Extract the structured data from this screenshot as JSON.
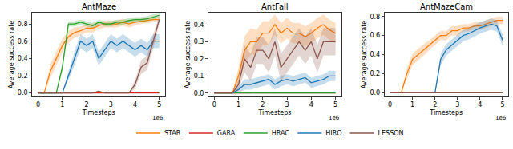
{
  "chart_data": [
    {
      "type": "line",
      "title": "AntMaze",
      "x_label": "Timesteps",
      "y_label": "Average success rate",
      "annotations": [
        "1e6"
      ],
      "legend": "bottom",
      "grid": false,
      "xlim": [
        -0.25,
        5.25
      ],
      "ylim": [
        -0.04,
        0.93
      ],
      "xticks": [
        0,
        1,
        2,
        3,
        4,
        5
      ],
      "yticks": [
        {
          "value": 0,
          "label": "0.0"
        },
        0.2,
        0.4,
        0.6,
        0.8
      ],
      "x": [
        0,
        0.25,
        0.5,
        0.75,
        1,
        1.25,
        1.5,
        1.75,
        2,
        2.25,
        2.5,
        2.75,
        3,
        3.25,
        3.5,
        3.75,
        4,
        4.25,
        4.5,
        4.75,
        5
      ],
      "series": [
        {
          "name": "STAR",
          "color": "#ff7f0e",
          "values": [
            0,
            0,
            0.25,
            0.4,
            0.55,
            0.65,
            0.7,
            0.72,
            0.75,
            0.75,
            0.78,
            0.8,
            0.8,
            0.8,
            0.82,
            0.8,
            0.82,
            0.83,
            0.84,
            0.85,
            0.85
          ],
          "error": [
            0,
            0,
            0.08,
            0.08,
            0.08,
            0.07,
            0.06,
            0.05,
            0.05,
            0.05,
            0.04,
            0.04,
            0.04,
            0.04,
            0.04,
            0.04,
            0.04,
            0.03,
            0.03,
            0.03,
            0.03
          ]
        },
        {
          "name": "GARA",
          "color": "#d62728",
          "values": [
            0,
            0,
            0,
            0,
            0,
            0,
            0,
            0,
            0,
            0,
            0,
            0,
            0,
            0,
            0,
            0,
            0,
            0,
            0,
            0,
            0
          ],
          "error": [
            0,
            0,
            0,
            0,
            0,
            0,
            0,
            0,
            0,
            0,
            0,
            0,
            0,
            0,
            0,
            0,
            0,
            0,
            0,
            0,
            0
          ]
        },
        {
          "name": "HRAC",
          "color": "#2ca02c",
          "values": [
            0,
            0,
            0,
            0,
            0.3,
            0.8,
            0.8,
            0.82,
            0.8,
            0.78,
            0.82,
            0.8,
            0.8,
            0.82,
            0.82,
            0.84,
            0.85,
            0.85,
            0.86,
            0.88,
            0.9
          ],
          "error": [
            0,
            0,
            0,
            0,
            0.05,
            0.03,
            0.03,
            0.03,
            0.03,
            0.03,
            0.03,
            0.03,
            0.03,
            0.03,
            0.03,
            0.03,
            0.03,
            0.03,
            0.03,
            0.03,
            0.03
          ]
        },
        {
          "name": "HIRO",
          "color": "#1f77b4",
          "values": [
            0,
            0,
            0,
            0,
            0,
            0.2,
            0.4,
            0.6,
            0.55,
            0.6,
            0.4,
            0.5,
            0.6,
            0.55,
            0.6,
            0.55,
            0.5,
            0.55,
            0.5,
            0.6,
            0.6
          ],
          "error": [
            0,
            0,
            0,
            0,
            0,
            0.05,
            0.08,
            0.08,
            0.08,
            0.08,
            0.08,
            0.08,
            0.08,
            0.08,
            0.08,
            0.08,
            0.08,
            0.08,
            0.08,
            0.08,
            0.08
          ]
        },
        {
          "name": "LESSON",
          "color": "#8c564b",
          "values": [
            0,
            0,
            0,
            0,
            0,
            0,
            0,
            0,
            0,
            0,
            0.02,
            0,
            0,
            0,
            0,
            0,
            0.1,
            0.3,
            0.35,
            0.6,
            0.85
          ],
          "error": [
            0,
            0,
            0,
            0,
            0,
            0,
            0,
            0,
            0,
            0,
            0.01,
            0,
            0,
            0,
            0,
            0,
            0.05,
            0.08,
            0.08,
            0.08,
            0.05
          ]
        }
      ]
    },
    {
      "type": "line",
      "title": "AntFall",
      "x_label": "Timesteps",
      "y_label": "Average success rate",
      "annotations": [
        "1e6"
      ],
      "grid": false,
      "xlim": [
        -0.25,
        5.25
      ],
      "ylim": [
        -0.02,
        0.47
      ],
      "xticks": [
        0,
        1,
        2,
        3,
        4,
        5
      ],
      "yticks": [
        {
          "value": 0,
          "label": "0.0"
        },
        0.1,
        0.2,
        0.3,
        0.4
      ],
      "x": [
        0,
        0.25,
        0.5,
        0.75,
        1,
        1.25,
        1.5,
        1.75,
        2,
        2.25,
        2.5,
        2.75,
        3,
        3.25,
        3.5,
        3.75,
        4,
        4.25,
        4.5,
        4.75,
        5
      ],
      "series": [
        {
          "name": "STAR",
          "color": "#ff7f0e",
          "values": [
            0,
            0,
            0,
            0,
            0.1,
            0.25,
            0.3,
            0.3,
            0.35,
            0.35,
            0.4,
            0.35,
            0.38,
            0.35,
            0.35,
            0.33,
            0.35,
            0.38,
            0.4,
            0.37,
            0.35
          ],
          "error": [
            0,
            0,
            0,
            0,
            0.05,
            0.08,
            0.08,
            0.07,
            0.07,
            0.07,
            0.06,
            0.06,
            0.06,
            0.06,
            0.06,
            0.06,
            0.06,
            0.06,
            0.06,
            0.06,
            0.06
          ]
        },
        {
          "name": "GARA",
          "color": "#d62728",
          "values": [
            0,
            0,
            0,
            0,
            0,
            0,
            0,
            0,
            0,
            0,
            0,
            0,
            0,
            0,
            0,
            0,
            0,
            0,
            0,
            0,
            0
          ],
          "error": [
            0,
            0,
            0,
            0,
            0,
            0,
            0,
            0,
            0,
            0,
            0,
            0,
            0,
            0,
            0,
            0,
            0,
            0,
            0,
            0,
            0
          ]
        },
        {
          "name": "HRAC",
          "color": "#2ca02c",
          "values": [
            0,
            0,
            0,
            0,
            0,
            0,
            0,
            0,
            0,
            0,
            0,
            0,
            0,
            0,
            0,
            0,
            0,
            0,
            0,
            0,
            0
          ],
          "error": [
            0,
            0,
            0,
            0,
            0,
            0,
            0,
            0,
            0,
            0,
            0,
            0,
            0,
            0,
            0,
            0,
            0,
            0,
            0,
            0,
            0
          ]
        },
        {
          "name": "HIRO",
          "color": "#1f77b4",
          "values": [
            0,
            0,
            0,
            0,
            0.02,
            0.05,
            0.05,
            0.06,
            0.07,
            0.08,
            0.05,
            0.07,
            0.08,
            0.07,
            0.08,
            0.09,
            0.06,
            0.07,
            0.08,
            0.1,
            0.1
          ],
          "error": [
            0,
            0,
            0,
            0,
            0.02,
            0.03,
            0.03,
            0.03,
            0.03,
            0.03,
            0.03,
            0.03,
            0.03,
            0.03,
            0.03,
            0.03,
            0.03,
            0.03,
            0.03,
            0.03,
            0.03
          ]
        },
        {
          "name": "LESSON",
          "color": "#8c564b",
          "values": [
            0,
            0,
            0,
            0,
            0.05,
            0.2,
            0.15,
            0.25,
            0.25,
            0.2,
            0.3,
            0.15,
            0.2,
            0.25,
            0.3,
            0.25,
            0.3,
            0.2,
            0.3,
            0.3,
            0.3
          ],
          "error": [
            0,
            0,
            0,
            0,
            0.03,
            0.08,
            0.08,
            0.08,
            0.08,
            0.08,
            0.08,
            0.08,
            0.08,
            0.08,
            0.08,
            0.08,
            0.08,
            0.08,
            0.08,
            0.08,
            0.08
          ]
        }
      ]
    },
    {
      "type": "line",
      "title": "AntMazeCam",
      "x_label": "Timesteps",
      "y_label": "Average success rate",
      "annotations": [
        "1e6"
      ],
      "grid": false,
      "xlim": [
        -0.25,
        5.25
      ],
      "ylim": [
        -0.04,
        0.84
      ],
      "xticks": [
        0,
        1,
        2,
        3,
        4,
        5
      ],
      "yticks": [
        {
          "value": 0,
          "label": "0.0"
        },
        0.2,
        0.4,
        0.6,
        0.8
      ],
      "x": [
        0,
        0.25,
        0.5,
        0.75,
        1,
        1.25,
        1.5,
        1.75,
        2,
        2.25,
        2.5,
        2.75,
        3,
        3.25,
        3.5,
        3.75,
        4,
        4.25,
        4.5,
        4.75,
        5
      ],
      "series": [
        {
          "name": "STAR",
          "color": "#ff7f0e",
          "values": [
            0,
            0,
            0,
            0.2,
            0.35,
            0.4,
            0.45,
            0.5,
            0.55,
            0.6,
            0.6,
            0.65,
            0.65,
            0.68,
            0.68,
            0.7,
            0.7,
            0.72,
            0.74,
            0.76,
            0.76
          ],
          "error": [
            0,
            0,
            0,
            0.06,
            0.06,
            0.06,
            0.06,
            0.05,
            0.05,
            0.05,
            0.05,
            0.05,
            0.05,
            0.04,
            0.04,
            0.04,
            0.04,
            0.04,
            0.04,
            0.04,
            0.04
          ]
        },
        {
          "name": "GARA",
          "color": "#d62728",
          "values": [
            0,
            0,
            0,
            0,
            0,
            0,
            0,
            0,
            0,
            0,
            0,
            0,
            0,
            0,
            0,
            0,
            0,
            0,
            0,
            0,
            0
          ],
          "error": [
            0,
            0,
            0,
            0,
            0,
            0,
            0,
            0,
            0,
            0,
            0,
            0,
            0,
            0,
            0,
            0,
            0,
            0,
            0,
            0,
            0
          ]
        },
        {
          "name": "HRAC",
          "color": "#2ca02c",
          "values": [
            0,
            0,
            0,
            0,
            0,
            0,
            0,
            0,
            0,
            0,
            0,
            0,
            0,
            0,
            0,
            0,
            0,
            0,
            0,
            0,
            0
          ],
          "error": [
            0,
            0,
            0,
            0,
            0,
            0,
            0,
            0,
            0,
            0,
            0,
            0,
            0,
            0,
            0,
            0,
            0,
            0,
            0,
            0,
            0
          ]
        },
        {
          "name": "HIRO",
          "color": "#1f77b4",
          "values": [
            0,
            0,
            0,
            0,
            0,
            0,
            0,
            0,
            0,
            0.35,
            0.45,
            0.5,
            0.55,
            0.6,
            0.62,
            0.65,
            0.68,
            0.7,
            0.72,
            0.7,
            0.55
          ],
          "error": [
            0,
            0,
            0,
            0,
            0,
            0,
            0,
            0,
            0,
            0.06,
            0.06,
            0.06,
            0.06,
            0.06,
            0.06,
            0.06,
            0.06,
            0.06,
            0.06,
            0.06,
            0.06
          ]
        },
        {
          "name": "LESSON",
          "color": "#8c564b",
          "values": [
            0,
            0,
            0,
            0,
            0,
            0,
            0,
            0,
            0,
            0,
            0,
            0,
            0,
            0,
            0,
            0,
            0,
            0,
            0,
            0,
            0
          ],
          "error": [
            0,
            0,
            0,
            0,
            0,
            0,
            0,
            0,
            0,
            0,
            0,
            0,
            0,
            0,
            0,
            0,
            0,
            0,
            0,
            0,
            0
          ]
        }
      ]
    }
  ]
}
